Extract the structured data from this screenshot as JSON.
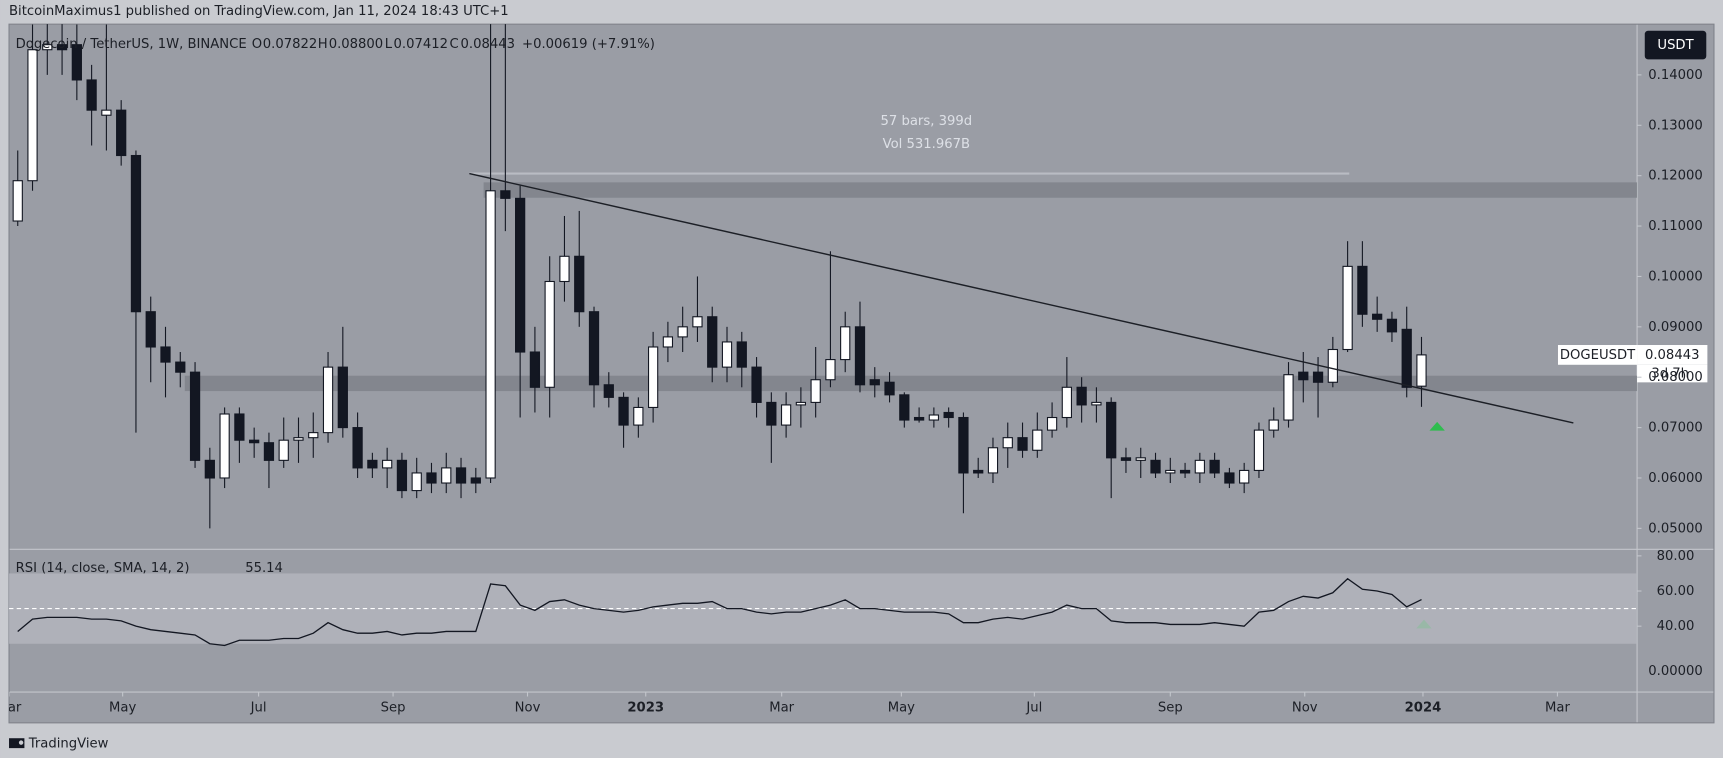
{
  "header": {
    "text": "BitcoinMaximus1 published on TradingView.com, Jan 11, 2024 18:43 UTC+1"
  },
  "footer": {
    "brand": "TradingView"
  },
  "chart_data": [
    {
      "type": "candlestick",
      "title": "Dogecoin / TetherUS, 1W, BINANCE",
      "ohlc_legend": {
        "o_label": "O",
        "o": "0.07822",
        "h_label": "H",
        "h": "0.08800",
        "l_label": "L",
        "l": "0.07412",
        "c_label": "C",
        "c": "0.08443",
        "change": "+0.00619 (+7.91%)"
      },
      "currency": "USDT",
      "measure": {
        "bars": "57 bars, 399d",
        "volume": "Vol 531.967B"
      },
      "last_price": {
        "symbol": "DOGEUSDT",
        "value": "0.08443",
        "countdown": "3d 7h"
      },
      "up_color": "#ffffff",
      "down_color": "#131722",
      "open": [
        0.111,
        0.119,
        0.145,
        0.146,
        0.146,
        0.139,
        0.132,
        0.133,
        0.124,
        0.093,
        0.086,
        0.083,
        0.081,
        0.0635,
        0.06,
        0.0727,
        0.0675,
        0.067,
        0.0635,
        0.0675,
        0.068,
        0.069,
        0.082,
        0.07,
        0.0635,
        0.062,
        0.0635,
        0.0575,
        0.061,
        0.059,
        0.062,
        0.06,
        0.06,
        0.117,
        0.1155,
        0.085,
        0.078,
        0.099,
        0.104,
        0.093,
        0.0785,
        0.076,
        0.0705,
        0.074,
        0.086,
        0.088,
        0.09,
        0.092,
        0.082,
        0.087,
        0.082,
        0.075,
        0.0705,
        0.0745,
        0.075,
        0.0795,
        0.0835,
        0.09,
        0.0795,
        0.079,
        0.0765,
        0.072,
        0.0715,
        0.073,
        0.072,
        0.0615,
        0.061,
        0.066,
        0.068,
        0.0655,
        0.0695,
        0.072,
        0.078,
        0.0745,
        0.075,
        0.064,
        0.0635,
        0.0635,
        0.061,
        0.0615,
        0.061,
        0.0635,
        0.061,
        0.059,
        0.0615,
        0.0695,
        0.0715,
        0.081,
        0.081,
        0.079,
        0.0855,
        0.102,
        0.0925,
        0.0915,
        0.0895,
        0.07822
      ],
      "high": [
        0.125,
        0.15,
        0.152,
        0.152,
        0.15,
        0.142,
        0.15,
        0.135,
        0.125,
        0.096,
        0.09,
        0.085,
        0.083,
        0.066,
        0.074,
        0.074,
        0.07,
        0.069,
        0.072,
        0.072,
        0.073,
        0.085,
        0.09,
        0.073,
        0.065,
        0.066,
        0.065,
        0.064,
        0.063,
        0.065,
        0.064,
        0.062,
        0.16,
        0.16,
        0.118,
        0.09,
        0.104,
        0.112,
        0.113,
        0.094,
        0.081,
        0.077,
        0.076,
        0.089,
        0.091,
        0.094,
        0.1,
        0.094,
        0.09,
        0.089,
        0.084,
        0.077,
        0.077,
        0.078,
        0.086,
        0.105,
        0.093,
        0.095,
        0.082,
        0.081,
        0.077,
        0.074,
        0.074,
        0.074,
        0.073,
        0.064,
        0.068,
        0.071,
        0.071,
        0.073,
        0.075,
        0.084,
        0.08,
        0.078,
        0.076,
        0.066,
        0.066,
        0.065,
        0.064,
        0.063,
        0.065,
        0.065,
        0.062,
        0.063,
        0.071,
        0.074,
        0.083,
        0.085,
        0.084,
        0.088,
        0.107,
        0.107,
        0.096,
        0.093,
        0.094,
        0.088
      ],
      "low": [
        0.11,
        0.117,
        0.14,
        0.14,
        0.135,
        0.126,
        0.125,
        0.122,
        0.069,
        0.079,
        0.076,
        0.078,
        0.062,
        0.05,
        0.058,
        0.063,
        0.064,
        0.058,
        0.062,
        0.063,
        0.064,
        0.067,
        0.068,
        0.06,
        0.06,
        0.058,
        0.056,
        0.056,
        0.057,
        0.057,
        0.056,
        0.057,
        0.059,
        0.109,
        0.072,
        0.073,
        0.072,
        0.095,
        0.09,
        0.074,
        0.074,
        0.066,
        0.068,
        0.071,
        0.083,
        0.085,
        0.087,
        0.079,
        0.079,
        0.078,
        0.072,
        0.063,
        0.068,
        0.07,
        0.072,
        0.078,
        0.081,
        0.077,
        0.076,
        0.075,
        0.07,
        0.071,
        0.07,
        0.07,
        0.053,
        0.06,
        0.059,
        0.062,
        0.064,
        0.064,
        0.068,
        0.07,
        0.071,
        0.071,
        0.056,
        0.061,
        0.06,
        0.06,
        0.059,
        0.06,
        0.059,
        0.06,
        0.058,
        0.057,
        0.06,
        0.068,
        0.07,
        0.075,
        0.072,
        0.078,
        0.085,
        0.09,
        0.089,
        0.087,
        0.076,
        0.07412
      ],
      "close": [
        0.119,
        0.145,
        0.146,
        0.145,
        0.139,
        0.133,
        0.133,
        0.124,
        0.093,
        0.086,
        0.083,
        0.081,
        0.0635,
        0.06,
        0.0727,
        0.0675,
        0.067,
        0.0635,
        0.0675,
        0.068,
        0.069,
        0.082,
        0.07,
        0.062,
        0.062,
        0.0635,
        0.0575,
        0.061,
        0.059,
        0.062,
        0.059,
        0.059,
        0.117,
        0.1155,
        0.085,
        0.078,
        0.099,
        0.104,
        0.093,
        0.0785,
        0.076,
        0.0705,
        0.074,
        0.086,
        0.088,
        0.09,
        0.092,
        0.082,
        0.087,
        0.082,
        0.075,
        0.0705,
        0.0745,
        0.075,
        0.0795,
        0.0835,
        0.09,
        0.0785,
        0.0785,
        0.0765,
        0.0715,
        0.0715,
        0.0725,
        0.072,
        0.061,
        0.061,
        0.066,
        0.068,
        0.0655,
        0.0695,
        0.072,
        0.078,
        0.0745,
        0.075,
        0.064,
        0.0635,
        0.064,
        0.061,
        0.0615,
        0.061,
        0.0635,
        0.061,
        0.059,
        0.0615,
        0.0695,
        0.0715,
        0.0805,
        0.0795,
        0.079,
        0.0855,
        0.102,
        0.0925,
        0.0915,
        0.089,
        0.078,
        0.08443
      ],
      "xlim": [
        -0.59,
        109.59
      ],
      "xticks": [
        {
          "value": -0.6,
          "label": "Mar"
        },
        {
          "value": 7.1,
          "label": "May"
        },
        {
          "value": 16.3,
          "label": "Jul"
        },
        {
          "value": 25.4,
          "label": "Sep"
        },
        {
          "value": 34.5,
          "label": "Nov"
        },
        {
          "value": 42.5,
          "label": "2023"
        },
        {
          "value": 51.7,
          "label": "Mar"
        },
        {
          "value": 59.8,
          "label": "May"
        },
        {
          "value": 68.8,
          "label": "Jul"
        },
        {
          "value": 78.0,
          "label": "Sep"
        },
        {
          "value": 87.1,
          "label": "Nov"
        },
        {
          "value": 95.1,
          "label": "2024"
        },
        {
          "value": 104.2,
          "label": "Mar"
        }
      ],
      "ylim": [
        0.04585,
        0.15007
      ],
      "yticks": [
        {
          "value": 0.05,
          "label": "0.05000"
        },
        {
          "value": 0.06,
          "label": "0.06000"
        },
        {
          "value": 0.07,
          "label": "0.07000"
        },
        {
          "value": 0.08,
          "label": "0.08000"
        },
        {
          "value": 0.09,
          "label": "0.09000"
        },
        {
          "value": 0.1,
          "label": "0.10000"
        },
        {
          "value": 0.11,
          "label": "0.11000"
        },
        {
          "value": 0.12,
          "label": "0.12000"
        },
        {
          "value": 0.13,
          "label": "0.13000"
        },
        {
          "value": 0.14,
          "label": "0.14000"
        }
      ]
    },
    {
      "type": "line",
      "title": "RSI (14, close, SMA, 14, 2)",
      "color": "#131722",
      "values": [
        37,
        44,
        45,
        45,
        45,
        44,
        44,
        43,
        40,
        38,
        37,
        36,
        35,
        30,
        29,
        32,
        32,
        32,
        33,
        33,
        36,
        42,
        38,
        36,
        36,
        37,
        35,
        36,
        36,
        37,
        37,
        37,
        64,
        63,
        52,
        49,
        54,
        55,
        52,
        50,
        49,
        48,
        49,
        51,
        52,
        53,
        53,
        54,
        50,
        50,
        48,
        47,
        48,
        48,
        50,
        52,
        55,
        50,
        50,
        49,
        48,
        48,
        48,
        47,
        42,
        42,
        44,
        45,
        44,
        46,
        48,
        52,
        50,
        50,
        43,
        42,
        42,
        42,
        41,
        41,
        41,
        42,
        41,
        40,
        48,
        49,
        54,
        57,
        56,
        59,
        67,
        61,
        60,
        58,
        51,
        55.14
      ],
      "band": [
        30,
        70
      ],
      "midline": 50,
      "ylim": [
        2.5,
        83.75
      ],
      "yticks": [
        {
          "value": 40,
          "label": "40.00"
        },
        {
          "value": 60,
          "label": "60.00"
        },
        {
          "value": 80,
          "label": "80.00"
        }
      ],
      "extra_axis_label": "0.00000"
    }
  ]
}
